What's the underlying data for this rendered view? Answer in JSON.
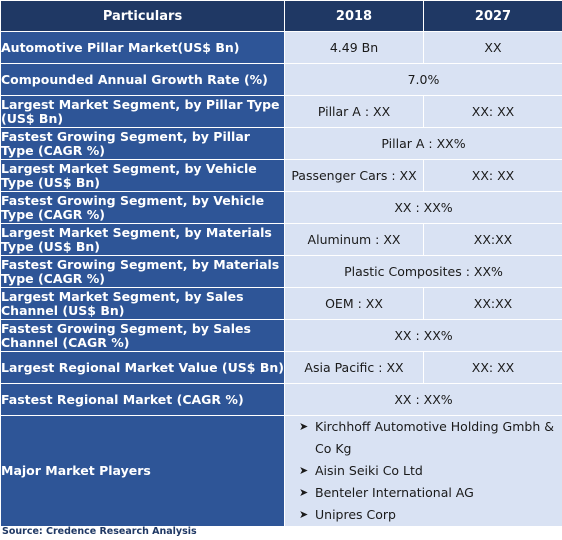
{
  "header": {
    "col1": "Particulars",
    "col2": "2018",
    "col3": "2027"
  },
  "rows": [
    {
      "label": "Automotive Pillar Market(US$ Bn)",
      "v2018": "4.49 Bn",
      "v2027": "XX"
    },
    {
      "label": "Compounded Annual Growth Rate (%)",
      "span": "7.0%"
    },
    {
      "label": "Largest Market Segment, by Pillar Type (US$ Bn)",
      "v2018": "Pillar A : XX",
      "v2027": "XX: XX"
    },
    {
      "label": "Fastest Growing Segment, by Pillar Type (CAGR %)",
      "span": "Pillar A : XX%"
    },
    {
      "label": "Largest Market Segment, by Vehicle Type (US$ Bn)",
      "v2018": "Passenger Cars : XX",
      "v2027": "XX: XX"
    },
    {
      "label": "Fastest Growing Segment, by Vehicle Type (CAGR %)",
      "span": "XX : XX%"
    },
    {
      "label": "Largest Market Segment, by Materials Type (US$ Bn)",
      "v2018": "Aluminum : XX",
      "v2027": "XX:XX"
    },
    {
      "label": "Fastest Growing Segment, by Materials Type (CAGR %)",
      "span": "Plastic Composites : XX%"
    },
    {
      "label": "Largest Market Segment, by Sales Channel (US$ Bn)",
      "v2018": "OEM : XX",
      "v2027": "XX:XX"
    },
    {
      "label": "Fastest Growing Segment, by Sales Channel (CAGR %)",
      "span": "XX : XX%"
    },
    {
      "label": "Largest Regional Market Value (US$ Bn)",
      "v2018": "Asia Pacific : XX",
      "v2027": "XX: XX"
    },
    {
      "label": "Fastest Regional Market (CAGR %)",
      "span": "XX : XX%"
    }
  ],
  "players": {
    "label": "Major Market Players",
    "bullet": "➤",
    "items": [
      "Kirchhoff Automotive Holding Gmbh & Co Kg",
      "Aisin Seiki Co Ltd",
      "Benteler International AG",
      "Unipres Corp"
    ]
  },
  "source": "Source: Credence Research Analysis",
  "colors": {
    "header_bg": "#1f3864",
    "label_bg": "#2e5597",
    "value_bg": "#d9e2f3"
  }
}
